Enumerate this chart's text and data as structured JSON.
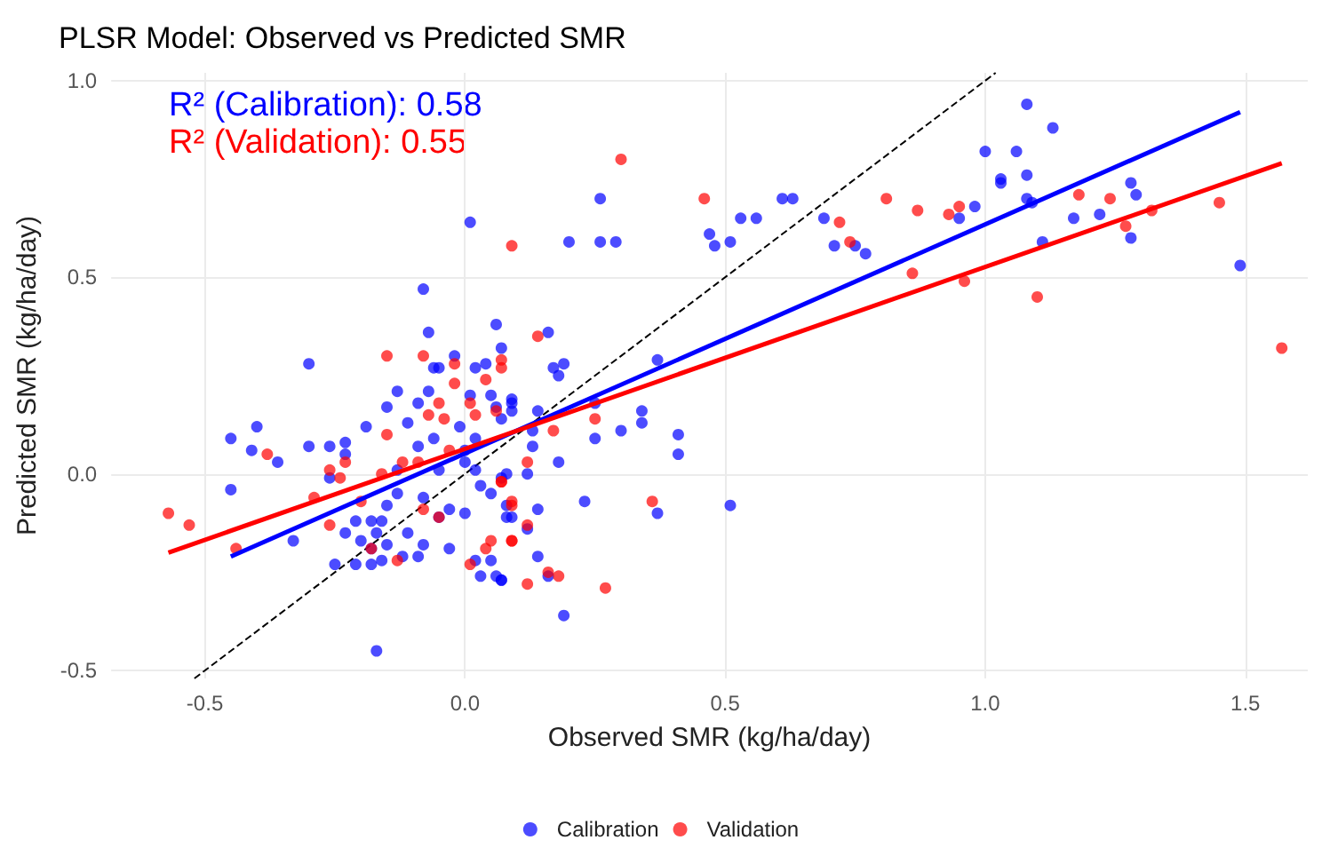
{
  "chart_data": {
    "type": "scatter",
    "title": "PLSR Model: Observed vs Predicted SMR",
    "xlabel": "Observed SMR (kg/ha/day)",
    "ylabel": "Predicted SMR (kg/ha/day)",
    "annotations": [
      "R² (Calibration): 0.58",
      "R² (Validation): 0.55"
    ],
    "xlim": [
      -0.68,
      1.62
    ],
    "ylim": [
      -0.52,
      1.02
    ],
    "xticks": [
      -0.5,
      {
        "value": 0,
        "label": "0.0"
      },
      0.5,
      {
        "value": 1,
        "label": "1.0"
      },
      1.5
    ],
    "yticks": [
      -0.5,
      {
        "value": 0,
        "label": "0.0"
      },
      0.5,
      {
        "value": 1,
        "label": "1.0"
      }
    ],
    "grid": true,
    "legend": "bottom",
    "marker": "circle",
    "series": [
      {
        "name": "Calibration",
        "color": "#0000ff",
        "x": [
          0.01,
          -0.08,
          -0.07,
          -0.3,
          0.06,
          -0.45,
          -0.4,
          -0.41,
          -0.36,
          -0.45,
          -0.3,
          -0.26,
          -0.23,
          -0.23,
          -0.19,
          -0.26,
          -0.13,
          -0.15,
          -0.11,
          -0.09,
          -0.07,
          -0.06,
          -0.05,
          -0.02,
          0.02,
          0.04,
          0.01,
          -0.01,
          0.05,
          0.06,
          0.07,
          -0.09,
          -0.06,
          -0.13,
          -0.08,
          -0.15,
          -0.13,
          -0.16,
          -0.21,
          -0.18,
          -0.23,
          -0.2,
          -0.17,
          -0.18,
          -0.15,
          -0.11,
          -0.21,
          -0.25,
          -0.18,
          -0.16,
          -0.12,
          -0.09,
          -0.08,
          -0.05,
          -0.03,
          0.0,
          -0.03,
          0.02,
          0.03,
          0.06,
          0.07,
          0.05,
          -0.17,
          -0.33,
          0.03,
          0.05,
          0.07,
          0.08,
          0.09,
          -0.05,
          0.02,
          0.0,
          0.02,
          0.0,
          0.09,
          0.26,
          0.2,
          0.26,
          0.29,
          0.47,
          0.48,
          0.51,
          0.53,
          0.56,
          0.61,
          0.63,
          0.69,
          0.71,
          0.75,
          0.77,
          0.16,
          0.17,
          0.19,
          0.18,
          0.37,
          0.07,
          0.09,
          0.09,
          0.14,
          0.13,
          0.13,
          0.25,
          0.25,
          0.3,
          0.34,
          0.34,
          0.41,
          0.41,
          0.18,
          0.12,
          0.08,
          0.23,
          0.37,
          0.51,
          0.14,
          0.08,
          0.12,
          0.14,
          0.07,
          0.16,
          0.19,
          1.08,
          1.13,
          1.0,
          1.06,
          1.03,
          1.03,
          1.08,
          1.08,
          1.09,
          0.98,
          0.95,
          1.11,
          1.17,
          1.22,
          1.28,
          1.29,
          1.28,
          1.49
        ],
        "values": [
          0.64,
          0.47,
          0.36,
          0.28,
          0.38,
          0.09,
          0.12,
          0.06,
          0.03,
          -0.04,
          0.07,
          0.07,
          0.08,
          0.05,
          0.12,
          -0.01,
          0.21,
          0.17,
          0.13,
          0.18,
          0.21,
          0.27,
          0.27,
          0.3,
          0.27,
          0.28,
          0.2,
          0.12,
          0.2,
          0.17,
          0.14,
          0.07,
          0.09,
          0.01,
          -0.06,
          -0.08,
          -0.05,
          -0.12,
          -0.12,
          -0.12,
          -0.15,
          -0.17,
          -0.15,
          -0.19,
          -0.18,
          -0.15,
          -0.23,
          -0.23,
          -0.23,
          -0.22,
          -0.21,
          -0.21,
          -0.18,
          -0.11,
          -0.09,
          -0.1,
          -0.19,
          -0.22,
          -0.26,
          -0.26,
          -0.27,
          -0.22,
          -0.45,
          -0.17,
          -0.03,
          -0.05,
          -0.01,
          -0.08,
          -0.11,
          0.01,
          0.09,
          0.06,
          0.01,
          0.03,
          0.18,
          0.7,
          0.59,
          0.59,
          0.59,
          0.61,
          0.58,
          0.59,
          0.65,
          0.65,
          0.7,
          0.7,
          0.65,
          0.58,
          0.58,
          0.56,
          0.36,
          0.27,
          0.28,
          0.25,
          0.29,
          0.32,
          0.19,
          0.16,
          0.16,
          0.11,
          0.07,
          0.18,
          0.09,
          0.11,
          0.16,
          0.13,
          0.1,
          0.05,
          0.03,
          0.0,
          0.0,
          -0.07,
          -0.1,
          -0.08,
          -0.09,
          -0.11,
          -0.14,
          -0.21,
          -0.27,
          -0.26,
          -0.36,
          0.94,
          0.88,
          0.82,
          0.82,
          0.75,
          0.74,
          0.76,
          0.7,
          0.69,
          0.68,
          0.65,
          0.59,
          0.65,
          0.66,
          0.74,
          0.71,
          0.6,
          0.53
        ]
      },
      {
        "name": "Validation",
        "color": "#ff0000",
        "x": [
          0.09,
          -0.57,
          -0.53,
          -0.44,
          -0.38,
          -0.29,
          -0.26,
          -0.26,
          -0.23,
          -0.24,
          -0.2,
          -0.15,
          -0.15,
          -0.08,
          -0.02,
          -0.02,
          -0.05,
          -0.07,
          -0.04,
          0.01,
          0.02,
          0.04,
          -0.12,
          -0.09,
          -0.03,
          -0.16,
          -0.08,
          -0.13,
          -0.05,
          0.01,
          0.04,
          0.05,
          0.09,
          0.09,
          0.07,
          -0.18,
          0.06,
          0.3,
          0.46,
          0.81,
          0.72,
          0.74,
          0.14,
          0.07,
          0.07,
          0.17,
          0.25,
          0.12,
          0.07,
          0.09,
          0.12,
          0.09,
          0.36,
          0.16,
          0.18,
          0.12,
          0.27,
          0.87,
          0.93,
          0.95,
          0.86,
          0.96,
          1.1,
          1.18,
          1.24,
          1.27,
          1.32,
          1.45,
          1.57
        ],
        "values": [
          0.58,
          -0.1,
          -0.13,
          -0.19,
          0.05,
          -0.06,
          -0.13,
          0.01,
          0.03,
          -0.01,
          -0.07,
          0.1,
          0.3,
          0.3,
          0.28,
          0.23,
          0.18,
          0.15,
          0.14,
          0.18,
          0.15,
          0.24,
          0.03,
          0.03,
          0.06,
          0.0,
          -0.09,
          -0.22,
          -0.11,
          -0.23,
          -0.19,
          -0.17,
          -0.17,
          -0.08,
          -0.02,
          -0.19,
          0.16,
          0.8,
          0.7,
          0.7,
          0.64,
          0.59,
          0.35,
          0.29,
          0.27,
          0.11,
          0.14,
          0.03,
          -0.02,
          -0.07,
          -0.13,
          -0.17,
          -0.07,
          -0.25,
          -0.26,
          -0.28,
          -0.29,
          0.67,
          0.66,
          0.68,
          0.51,
          0.49,
          0.45,
          0.71,
          0.7,
          0.63,
          0.67,
          0.69,
          0.32
        ]
      },
      {
        "type": "line",
        "color": "#0000ff",
        "marker": "none",
        "line_style": "solid",
        "x": [
          -0.45,
          1.49
        ],
        "values": [
          -0.21,
          0.92
        ]
      },
      {
        "type": "line",
        "color": "#ff0000",
        "marker": "none",
        "line_style": "solid",
        "x": [
          -0.57,
          1.57
        ],
        "values": [
          -0.2,
          0.79
        ]
      },
      {
        "type": "line",
        "color": "#000000",
        "marker": "none",
        "line_style": "dashed",
        "x": [
          -0.52,
          1.02
        ],
        "values": [
          -0.52,
          1.02
        ]
      }
    ]
  }
}
